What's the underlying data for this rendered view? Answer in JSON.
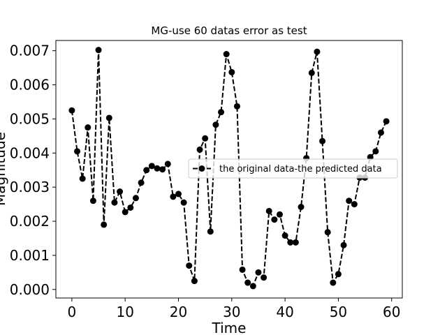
{
  "chart_data": {
    "type": "line",
    "title": "MG-use 60 datas error as test",
    "xlabel": "Time",
    "ylabel": "Magnitude",
    "xlim": [
      -3,
      62
    ],
    "ylim": [
      -0.00025,
      0.0073
    ],
    "x_ticks": [
      0,
      10,
      20,
      30,
      40,
      50,
      60
    ],
    "x_tick_labels": [
      "0",
      "10",
      "20",
      "30",
      "40",
      "50",
      "60"
    ],
    "y_ticks": [
      0,
      0.001,
      0.002,
      0.003,
      0.004,
      0.005,
      0.006,
      0.007
    ],
    "y_tick_labels": [
      "0.000",
      "0.001",
      "0.002",
      "0.003",
      "0.004",
      "0.005",
      "0.006",
      "0.007"
    ],
    "grid": false,
    "legend_position": "center-right",
    "series": [
      {
        "name": "the original data-the predicted data",
        "color": "#000000",
        "line_style": "dashed",
        "marker": "circle",
        "x": [
          0,
          1,
          2,
          3,
          4,
          5,
          6,
          7,
          8,
          9,
          10,
          11,
          12,
          13,
          14,
          15,
          16,
          17,
          18,
          19,
          20,
          21,
          22,
          23,
          24,
          25,
          26,
          27,
          28,
          29,
          30,
          31,
          32,
          33,
          34,
          35,
          36,
          37,
          38,
          39,
          40,
          41,
          42,
          43,
          44,
          45,
          46,
          47,
          48,
          49,
          50,
          51,
          52,
          53,
          54,
          55,
          56,
          57,
          58,
          59
        ],
        "values": [
          0.00525,
          0.00405,
          0.00325,
          0.00475,
          0.0026,
          0.00702,
          0.0019,
          0.00503,
          0.00255,
          0.00287,
          0.00227,
          0.0024,
          0.00268,
          0.00313,
          0.0035,
          0.00362,
          0.00355,
          0.00352,
          0.00368,
          0.00272,
          0.0028,
          0.00255,
          0.0007,
          0.00025,
          0.0041,
          0.00443,
          0.0017,
          0.00483,
          0.0052,
          0.0069,
          0.00637,
          0.00537,
          0.00058,
          0.0002,
          0.0001,
          0.0005,
          0.00035,
          0.0023,
          0.00205,
          0.0022,
          0.00158,
          0.00138,
          0.00138,
          0.00242,
          0.00385,
          0.00635,
          0.00697,
          0.00435,
          0.00168,
          0.0002,
          0.00045,
          0.0013,
          0.0026,
          0.0025,
          0.00328,
          0.00328,
          0.00388,
          0.00405,
          0.0046,
          0.00493
        ]
      }
    ]
  }
}
